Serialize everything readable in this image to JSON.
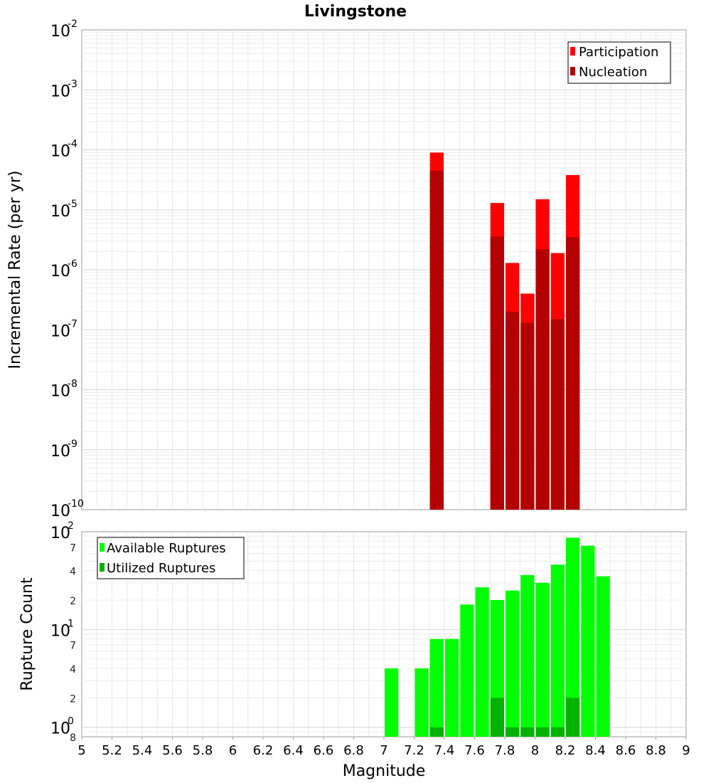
{
  "chart_data": [
    {
      "type": "bar",
      "title": "Livingstone",
      "xlabel": "",
      "ylabel": "Incremental Rate (per yr)",
      "yscale": "log",
      "ylim": [
        1e-10,
        0.01
      ],
      "xlim": [
        5,
        9
      ],
      "bar_width": 0.1,
      "y_ticks": [
        {
          "base": "10",
          "exp": "-10"
        },
        {
          "base": "10",
          "exp": "-9"
        },
        {
          "base": "10",
          "exp": "-8"
        },
        {
          "base": "10",
          "exp": "-7"
        },
        {
          "base": "10",
          "exp": "-6"
        },
        {
          "base": "10",
          "exp": "-5"
        },
        {
          "base": "10",
          "exp": "-4"
        },
        {
          "base": "10",
          "exp": "-3"
        },
        {
          "base": "10",
          "exp": "-2"
        }
      ],
      "legend_position": "top-right",
      "series": [
        {
          "name": "Participation",
          "color": "#ff0000",
          "points": [
            {
              "x": 7.35,
              "y": 9e-05
            },
            {
              "x": 7.75,
              "y": 1.3e-05
            },
            {
              "x": 7.85,
              "y": 1.3e-06
            },
            {
              "x": 7.95,
              "y": 4e-07
            },
            {
              "x": 8.05,
              "y": 1.5e-05
            },
            {
              "x": 8.15,
              "y": 1.9e-06
            },
            {
              "x": 8.25,
              "y": 3.8e-05
            }
          ]
        },
        {
          "name": "Nucleation",
          "color": "#b30000",
          "points": [
            {
              "x": 7.35,
              "y": 4.5e-05
            },
            {
              "x": 7.75,
              "y": 3.6e-06
            },
            {
              "x": 7.85,
              "y": 2e-07
            },
            {
              "x": 7.95,
              "y": 1.3e-07
            },
            {
              "x": 8.05,
              "y": 2.2e-06
            },
            {
              "x": 8.15,
              "y": 1.5e-07
            },
            {
              "x": 8.25,
              "y": 3.5e-06
            }
          ]
        }
      ]
    },
    {
      "type": "bar",
      "title": "",
      "xlabel": "Magnitude",
      "ylabel": "Rupture Count",
      "yscale": "log",
      "ylim": [
        0.8,
        100
      ],
      "xlim": [
        5,
        9
      ],
      "bar_width": 0.1,
      "x_ticks": [
        "5",
        "5.2",
        "5.4",
        "5.6",
        "5.8",
        "6",
        "6.2",
        "6.4",
        "6.6",
        "6.8",
        "7",
        "7.2",
        "7.4",
        "7.6",
        "7.8",
        "8",
        "8.2",
        "8.4",
        "8.6",
        "8.8",
        "9"
      ],
      "y_ticks": [
        {
          "base": "10",
          "exp": "0"
        },
        {
          "base": "10",
          "exp": "1"
        },
        {
          "base": "10",
          "exp": "2"
        }
      ],
      "y_minor_labels": [
        {
          "value": 0.8,
          "label": "8"
        },
        {
          "value": 2,
          "label": "2"
        },
        {
          "value": 4,
          "label": "4"
        },
        {
          "value": 7,
          "label": "7"
        },
        {
          "value": 20,
          "label": "2"
        },
        {
          "value": 40,
          "label": "4"
        },
        {
          "value": 70,
          "label": "7"
        }
      ],
      "legend_position": "top-left",
      "series": [
        {
          "name": "Available Ruptures",
          "color": "#00ff00",
          "points": [
            {
              "x": 7.05,
              "y": 4
            },
            {
              "x": 7.25,
              "y": 4
            },
            {
              "x": 7.35,
              "y": 8
            },
            {
              "x": 7.45,
              "y": 8
            },
            {
              "x": 7.55,
              "y": 18
            },
            {
              "x": 7.65,
              "y": 27
            },
            {
              "x": 7.75,
              "y": 20
            },
            {
              "x": 7.85,
              "y": 25
            },
            {
              "x": 7.95,
              "y": 36
            },
            {
              "x": 8.05,
              "y": 30
            },
            {
              "x": 8.15,
              "y": 46
            },
            {
              "x": 8.25,
              "y": 87
            },
            {
              "x": 8.35,
              "y": 72
            },
            {
              "x": 8.45,
              "y": 35
            }
          ]
        },
        {
          "name": "Utilized Ruptures",
          "color": "#00b300",
          "points": [
            {
              "x": 7.35,
              "y": 1
            },
            {
              "x": 7.75,
              "y": 2
            },
            {
              "x": 7.85,
              "y": 1
            },
            {
              "x": 7.95,
              "y": 1
            },
            {
              "x": 8.05,
              "y": 1
            },
            {
              "x": 8.15,
              "y": 1
            },
            {
              "x": 8.25,
              "y": 2
            }
          ]
        }
      ]
    }
  ]
}
